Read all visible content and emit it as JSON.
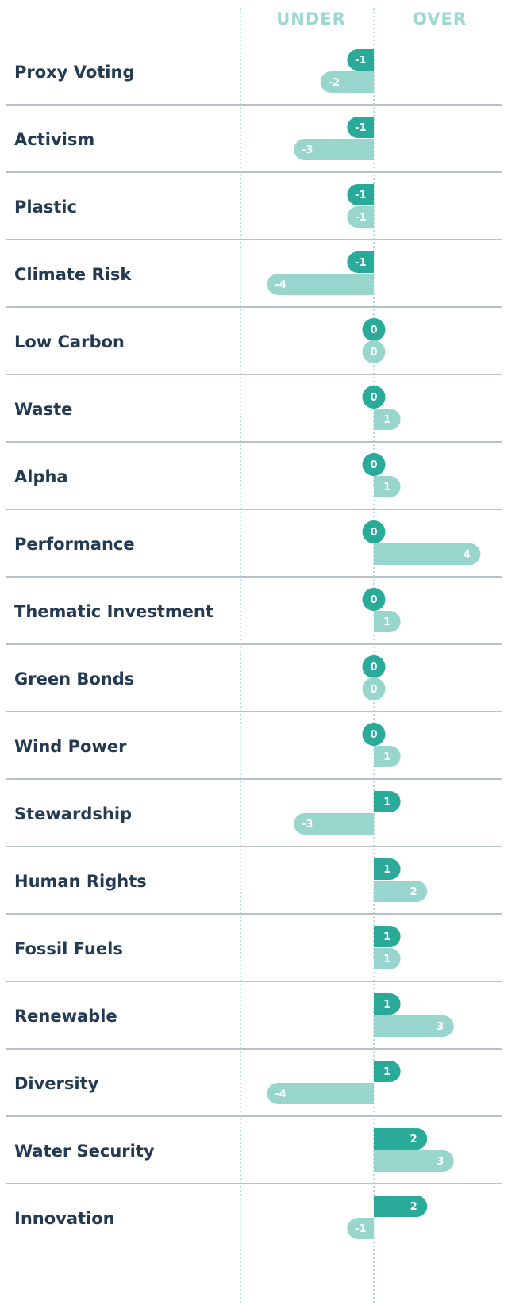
{
  "chart_data": {
    "type": "diverging-bar",
    "column_headers": [
      "UNDER",
      "OVER"
    ],
    "categories": [
      "Proxy Voting",
      "Activism",
      "Plastic",
      "Climate Risk",
      "Low Carbon",
      "Waste",
      "Alpha",
      "Performance",
      "Thematic Investment",
      "Green Bonds",
      "Wind Power",
      "Stewardship",
      "Human Rights",
      "Fossil Fuels",
      "Renewable",
      "Diversity",
      "Water Security",
      "Innovation"
    ],
    "series": [
      {
        "color": "#2aaa99",
        "values": [
          -1,
          -1,
          -1,
          -1,
          0,
          0,
          0,
          0,
          0,
          0,
          0,
          1,
          1,
          1,
          1,
          1,
          2,
          2
        ]
      },
      {
        "color": "#98d6cd",
        "values": [
          -2,
          -3,
          -1,
          -4,
          0,
          1,
          1,
          4,
          1,
          0,
          1,
          -3,
          2,
          1,
          3,
          -4,
          3,
          -1
        ]
      }
    ],
    "xlim": [
      -5,
      5
    ],
    "xticks": [
      -5,
      0
    ],
    "grid": true
  }
}
